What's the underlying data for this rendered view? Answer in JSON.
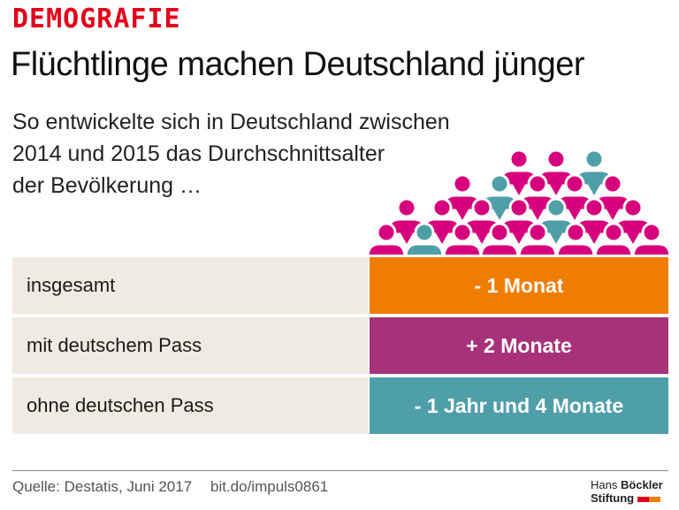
{
  "kicker": "DEMOGRAFIE",
  "title": "Flüchtlinge machen Deutschland jünger",
  "subtitle_lines": [
    "So entwickelte sich in Deutschland zwischen",
    "2014 und 2015 das Durchschnittsalter",
    "der Bevölkerung …"
  ],
  "colors": {
    "kicker": "#e2001a",
    "people_german": "#d6007e",
    "people_refugee": "#4f9fa9",
    "insgesamt": "#ef7d00",
    "mit": "#a8327a",
    "ohne": "#4f9fa9",
    "label_bg": "#efebe2"
  },
  "chart_data": {
    "type": "table",
    "rows": [
      {
        "label": "insgesamt",
        "value": "- 1 Monat"
      },
      {
        "label": "mit deutschem Pass",
        "value": "+  2  Monate"
      },
      {
        "label": "ohne deutschen Pass",
        "value": "- 1 Jahr und 4 Monate"
      }
    ]
  },
  "footer": {
    "source": "Quelle: Destatis, Juni 2017",
    "link": "bit.do/impuls0861",
    "logo_line1a": "Hans ",
    "logo_line1b": "Böckler",
    "logo_line2": "Stiftung"
  }
}
